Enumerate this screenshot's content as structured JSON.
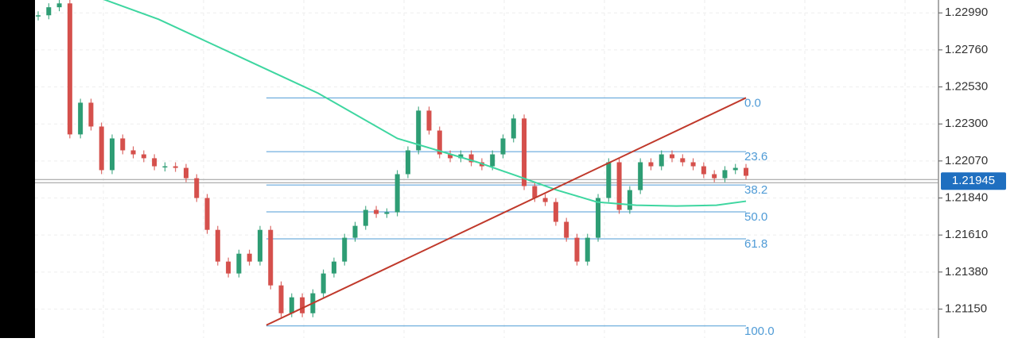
{
  "chart_data": {
    "type": "candlestick",
    "up_color": "#2e9d74",
    "down_color": "#d5504c",
    "values": [
      1.22975,
      1.23025,
      1.23049,
      1.22235,
      1.22432,
      1.22284,
      1.22013,
      1.2221,
      1.22136,
      1.22111,
      1.22087,
      1.22037,
      1.22037,
      1.22027,
      1.21963,
      1.2184,
      1.21642,
      1.21445,
      1.21371,
      1.21494,
      1.21445,
      1.21642,
      1.21297,
      1.21124,
      1.21223,
      1.21124,
      1.21248,
      1.21371,
      1.21445,
      1.21593,
      1.21667,
      1.21766,
      1.21741,
      1.21751,
      1.21988,
      1.22136,
      1.22383,
      1.22259,
      1.22111,
      1.22087,
      1.22111,
      1.22062,
      1.22037,
      1.22111,
      1.2221,
      1.22334,
      1.21914,
      1.2184,
      1.21815,
      1.21692,
      1.21593,
      1.21445,
      1.21593,
      1.2184,
      1.22062,
      1.21766,
      1.21889,
      1.22062,
      1.22037,
      1.22111,
      1.22087,
      1.22062,
      1.22037,
      1.21988,
      1.21963,
      1.22013,
      1.22027,
      1.21978
    ],
    "ma": {
      "color": "#3ed6a0",
      "x": [
        6.2,
        11.4,
        19,
        26.5,
        34,
        41.6,
        45.3,
        49.1,
        52.9,
        56.6,
        60.4,
        64.2,
        67
      ],
      "values": [
        1.23074,
        1.2295,
        1.22719,
        1.22491,
        1.2221,
        1.22062,
        1.21978,
        1.21889,
        1.21815,
        1.21795,
        1.2179,
        1.21795,
        1.2182
      ]
    },
    "trendline": {
      "color": "#c0392b",
      "x": [
        21.6,
        67
      ],
      "values": [
        1.2105,
        1.22462
      ]
    },
    "fib": {
      "high": 1.22462,
      "low": 1.21045,
      "color": "#4f9bd6",
      "x": [
        21.6,
        67
      ],
      "levels": [
        {
          "value": 0,
          "label": "0.0"
        },
        23.6,
        38.2,
        {
          "value": 50,
          "label": "50.0"
        },
        61.8,
        {
          "value": 100,
          "label": "100.0"
        }
      ]
    },
    "last_price": 1.21945,
    "last_price_color": "#1f6fc0",
    "ylim": [
      1.2097,
      1.2307
    ],
    "yticks": [
      {
        "value": 1.2299,
        "label": "1.22990"
      },
      {
        "value": 1.2276,
        "label": "1.22760"
      },
      {
        "value": 1.2253,
        "label": "1.22530"
      },
      {
        "value": 1.223,
        "label": "1.22300"
      },
      {
        "value": 1.2207,
        "label": "1.22070"
      },
      {
        "value": 1.2184,
        "label": "1.21840"
      },
      {
        "value": 1.2161,
        "label": "1.21610"
      },
      {
        "value": 1.2138,
        "label": "1.21380"
      },
      {
        "value": 1.2115,
        "label": "1.21150"
      }
    ],
    "grid": true
  }
}
